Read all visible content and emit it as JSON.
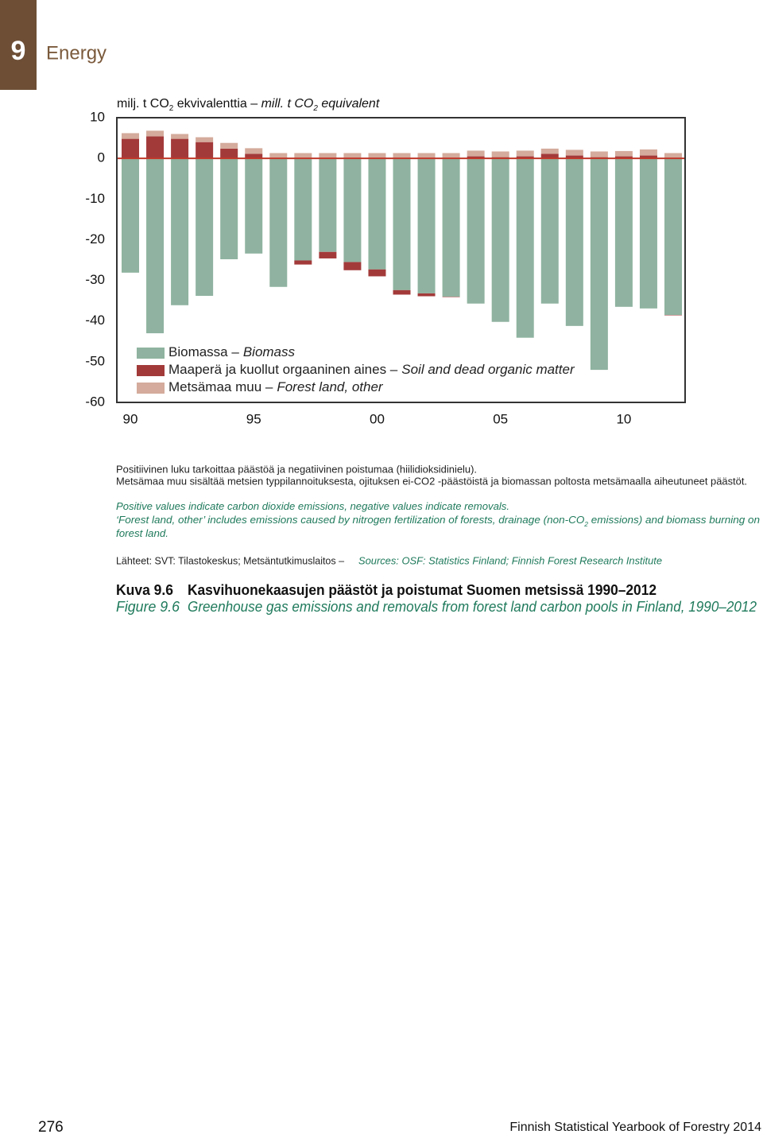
{
  "header": {
    "chapter": "9",
    "section": "Energy"
  },
  "chart_data": {
    "type": "bar",
    "stacked": true,
    "y_label": [
      {
        "text": "milj. t CO"
      },
      {
        "text": "2",
        "sub": true
      },
      {
        "text": " ekvivalenttia – "
      },
      {
        "text": "mill. t CO",
        "italic": true
      },
      {
        "text": "2",
        "sub": true,
        "italic": true
      },
      {
        "text": " equivalent",
        "italic": true
      }
    ],
    "categories": [
      "90",
      null,
      null,
      null,
      null,
      "95",
      null,
      null,
      null,
      null,
      "00",
      null,
      null,
      null,
      null,
      "05",
      null,
      null,
      null,
      null,
      "10",
      null,
      null
    ],
    "series": [
      {
        "name": "Biomassa –",
        "name_en": "Biomass",
        "color": "#8fb3a0",
        "values": [
          -28.1,
          -43.0,
          -36.1,
          -33.8,
          -24.8,
          -23.4,
          -31.6,
          -25.1,
          -23.0,
          -25.5,
          -27.3,
          -32.4,
          -33.2,
          -34.0,
          -35.7,
          -40.2,
          -44.1,
          -35.7,
          -41.2,
          -52.0,
          -36.5,
          -36.9,
          -38.5
        ]
      },
      {
        "name": "Maaperä ja kuollut orgaaninen aines –",
        "name_en": "Soil and dead organic matter",
        "color": "#a33a3a",
        "values": [
          4.8,
          5.4,
          4.8,
          4.0,
          2.4,
          1.1,
          0,
          -1.0,
          -1.6,
          -2.0,
          -1.7,
          -1.1,
          -0.7,
          -0.1,
          0.5,
          0.3,
          0.5,
          1.1,
          0.7,
          0.3,
          0.5,
          0.7,
          -0.1
        ]
      },
      {
        "name": "Metsämaa muu –",
        "name_en": "Forest land, other",
        "color": "#d4ab9c",
        "values": [
          1.4,
          1.4,
          1.2,
          1.2,
          1.4,
          1.4,
          1.3,
          1.3,
          1.3,
          1.3,
          1.3,
          1.3,
          1.3,
          1.3,
          1.4,
          1.4,
          1.4,
          1.3,
          1.4,
          1.4,
          1.3,
          1.5,
          1.3
        ]
      }
    ],
    "ylim": [
      -60,
      10
    ],
    "yticks": [
      10,
      0,
      -10,
      -20,
      -30,
      -40,
      -50,
      -60
    ],
    "zero_line_color": "#c0392b",
    "legend_position": "lower left"
  },
  "notes": {
    "fi": [
      "Positiivinen luku tarkoittaa päästöä ja negatiivinen poistumaa (hiilidioksidinielu).",
      "Metsämaa muu sisältää metsien typpilannoituksesta, ojituksen ei-CO2 -päästöistä ja biomassan poltosta metsämaalla aiheutuneet päästöt."
    ],
    "en": [
      [
        {
          "text": "Positive values indicate carbon dioxide emissions, negative values indicate removals."
        }
      ],
      [
        {
          "text": "‘Forest land, other’ includes emissions caused by nitrogen fertilization of forests, drainage (non-CO"
        },
        {
          "text": "2",
          "sub": true
        },
        {
          "text": " emissions) and biomass burning on"
        }
      ],
      [
        {
          "text": "forest land."
        }
      ]
    ]
  },
  "sources": {
    "fi": "Lähteet: SVT: Tilastokeskus; Metsäntutkimuslaitos –",
    "en": "Sources: OSF: Statistics Finland; Finnish Forest Research Institute"
  },
  "caption": {
    "fi_label": "Kuva 9.6",
    "fi_title": "Kasvihuonekaasujen päästöt ja poistumat Suomen metsissä 1990–2012",
    "en_label": "Figure 9.6",
    "en_title": "Greenhouse gas emissions and removals from forest land carbon pools in Finland, 1990–2012"
  },
  "footer": {
    "page": "276",
    "publication": "Finnish Statistical Yearbook of Forestry 2014"
  }
}
